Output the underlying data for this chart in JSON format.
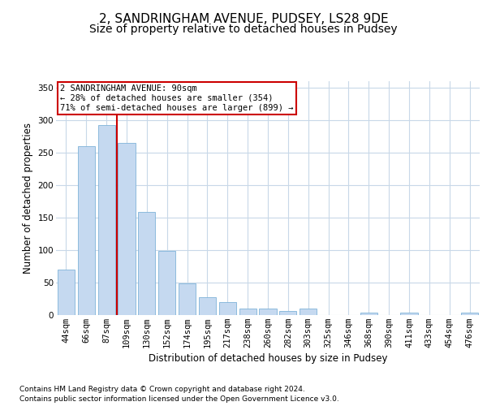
{
  "title": "2, SANDRINGHAM AVENUE, PUDSEY, LS28 9DE",
  "subtitle": "Size of property relative to detached houses in Pudsey",
  "xlabel": "Distribution of detached houses by size in Pudsey",
  "ylabel": "Number of detached properties",
  "categories": [
    "44sqm",
    "66sqm",
    "87sqm",
    "109sqm",
    "130sqm",
    "152sqm",
    "174sqm",
    "195sqm",
    "217sqm",
    "238sqm",
    "260sqm",
    "282sqm",
    "303sqm",
    "325sqm",
    "346sqm",
    "368sqm",
    "390sqm",
    "411sqm",
    "433sqm",
    "454sqm",
    "476sqm"
  ],
  "values": [
    69,
    260,
    293,
    265,
    158,
    98,
    48,
    27,
    19,
    10,
    10,
    6,
    9,
    0,
    0,
    3,
    0,
    3,
    0,
    0,
    3
  ],
  "bar_color": "#c5d9f0",
  "bar_edge_color": "#7fb3d9",
  "ylim": [
    0,
    360
  ],
  "yticks": [
    0,
    50,
    100,
    150,
    200,
    250,
    300,
    350
  ],
  "property_label": "2 SANDRINGHAM AVENUE: 90sqm",
  "annotation_line1": "← 28% of detached houses are smaller (354)",
  "annotation_line2": "71% of semi-detached houses are larger (899) →",
  "marker_bin_index": 2,
  "footer_line1": "Contains HM Land Registry data © Crown copyright and database right 2024.",
  "footer_line2": "Contains public sector information licensed under the Open Government Licence v3.0.",
  "bg_color": "#ffffff",
  "grid_color": "#c8d8e8",
  "title_fontsize": 11,
  "subtitle_fontsize": 10,
  "axis_label_fontsize": 8.5,
  "tick_fontsize": 7.5,
  "annotation_fontsize": 7.5,
  "footer_fontsize": 6.5,
  "annotation_box_color": "#cc0000",
  "red_line_color": "#cc0000"
}
